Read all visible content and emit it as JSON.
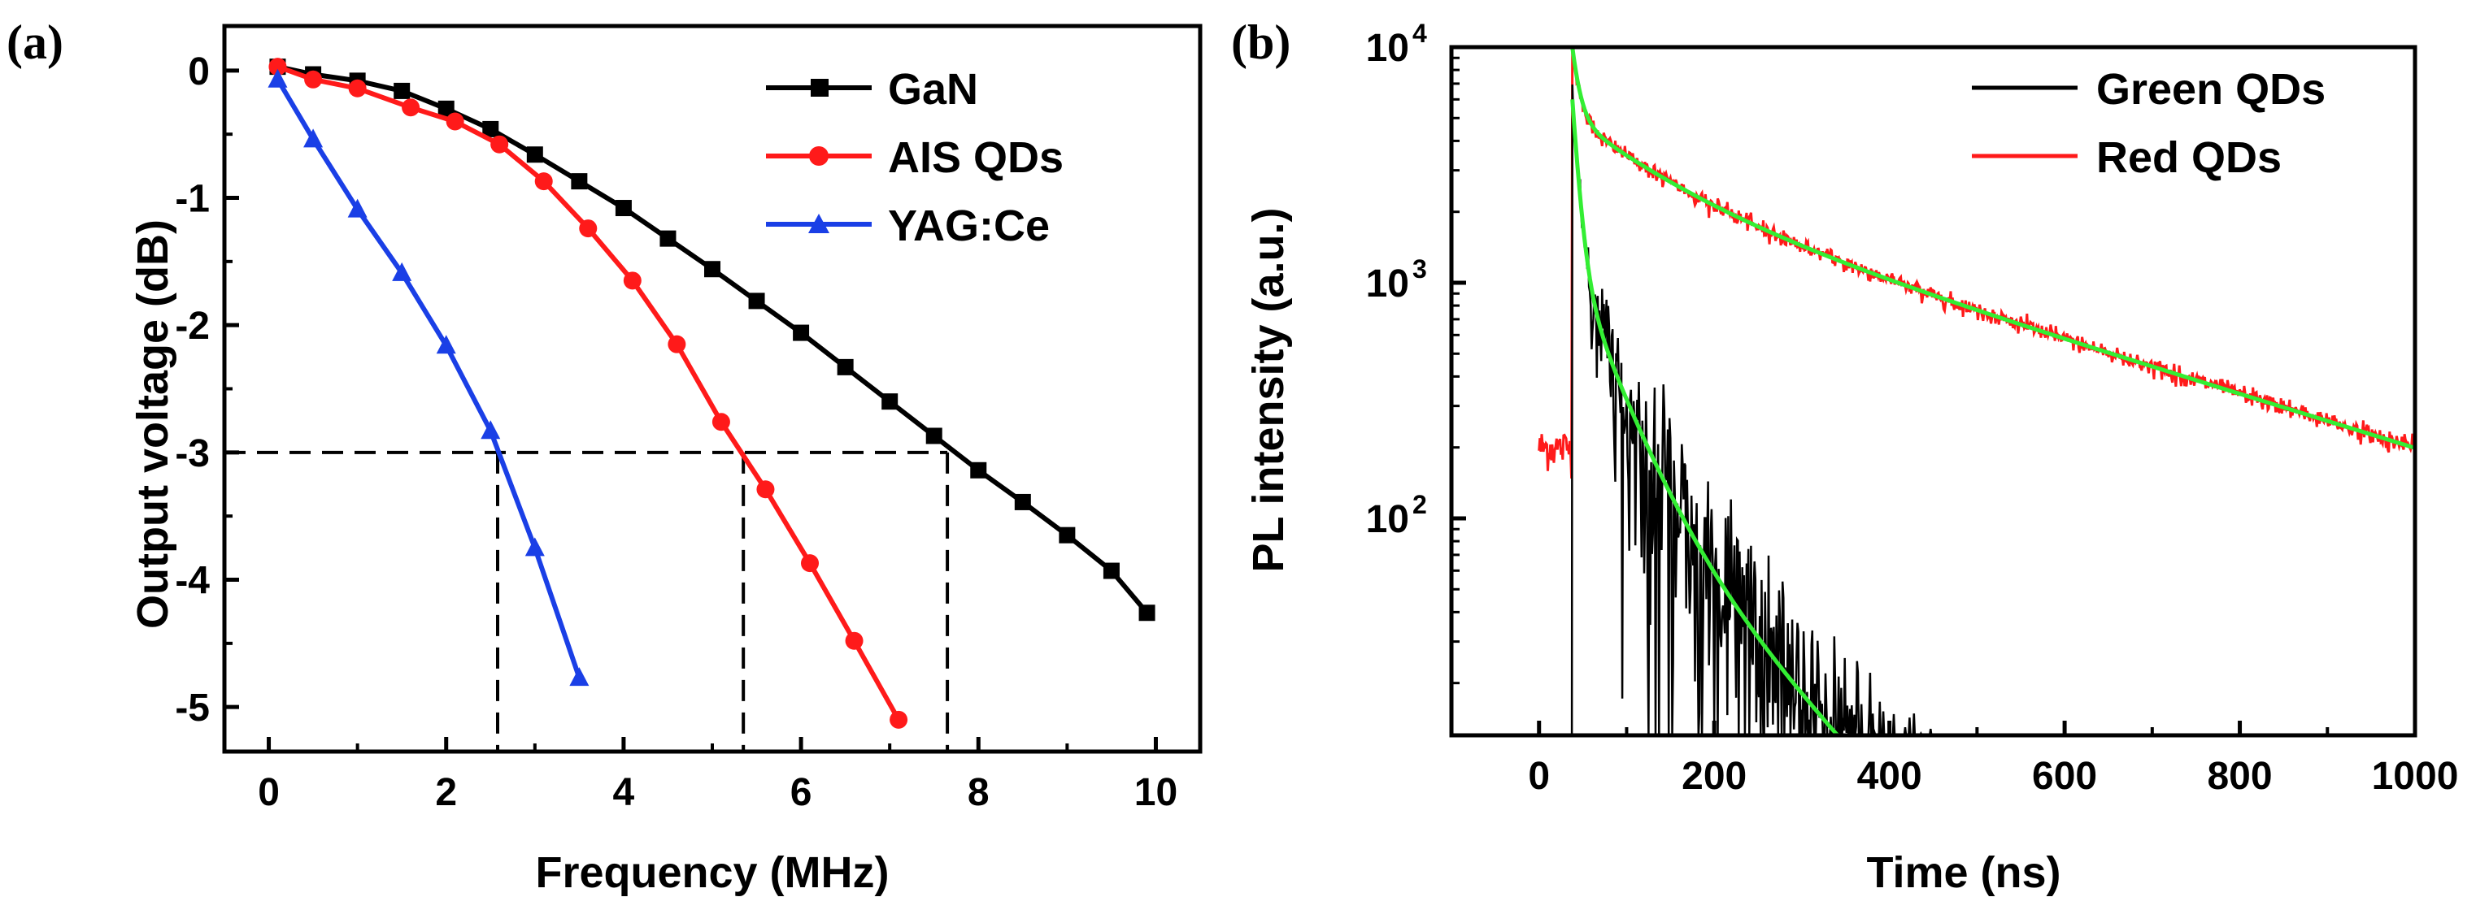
{
  "colors": {
    "gan": "#000000",
    "ais": "#ff1a1a",
    "yag": "#1a3fe6",
    "green_qds": "#000000",
    "red_qds": "#ff1a1a",
    "fit": "#33ee33"
  },
  "chart_data": [
    {
      "panel": "(a)",
      "type": "line",
      "title": "",
      "xlabel": "Frequency (MHz)",
      "ylabel": "Output voltage (dB)",
      "xlim": [
        -0.5,
        10.5
      ],
      "ylim": [
        -5.35,
        0.35
      ],
      "xticks": [
        0,
        2,
        4,
        6,
        8,
        10
      ],
      "xtick_labels": [
        "0",
        "2",
        "4",
        "6",
        "8",
        "10"
      ],
      "yticks": [
        0,
        -1,
        -2,
        -3,
        -4,
        -5
      ],
      "ytick_labels": [
        "0",
        "-1",
        "-2",
        "-3",
        "-4",
        "-5"
      ],
      "legend_position": "top-right",
      "series": [
        {
          "name": "GaN",
          "color": "#000000",
          "marker": "square",
          "x": [
            0.1,
            0.5,
            1.0,
            1.5,
            2.0,
            2.5,
            3.0,
            3.5,
            4.0,
            4.5,
            5.0,
            5.5,
            6.0,
            6.5,
            7.0,
            7.5,
            8.0,
            8.5,
            9.0,
            9.5,
            9.9
          ],
          "values": [
            0.03,
            -0.03,
            -0.08,
            -0.16,
            -0.3,
            -0.46,
            -0.66,
            -0.87,
            -1.08,
            -1.32,
            -1.56,
            -1.81,
            -2.06,
            -2.33,
            -2.6,
            -2.87,
            -3.14,
            -3.39,
            -3.65,
            -3.93,
            -4.26
          ]
        },
        {
          "name": "AIS QDs",
          "color": "#ff1a1a",
          "marker": "circle",
          "x": [
            0.1,
            0.5,
            1.0,
            1.6,
            2.1,
            2.6,
            3.1,
            3.6,
            4.1,
            4.6,
            5.1,
            5.6,
            6.1,
            6.6,
            7.1
          ],
          "values": [
            0.03,
            -0.07,
            -0.14,
            -0.29,
            -0.4,
            -0.58,
            -0.87,
            -1.24,
            -1.65,
            -2.15,
            -2.76,
            -3.29,
            -3.87,
            -4.48,
            -5.1
          ]
        },
        {
          "name": "YAG:Ce",
          "color": "#1a3fe6",
          "marker": "triangle",
          "x": [
            0.1,
            0.5,
            1.0,
            1.5,
            2.0,
            2.5,
            3.0,
            3.5
          ],
          "values": [
            -0.07,
            -0.54,
            -1.09,
            -1.59,
            -2.16,
            -2.83,
            -3.75,
            -4.77
          ]
        }
      ],
      "cutoff_line_y": -3,
      "cutoff_frequencies": [
        2.58,
        5.35,
        7.65
      ]
    },
    {
      "panel": "(b)",
      "type": "line",
      "title": "",
      "xlabel": "Time (ns)",
      "ylabel": "PL intensity (a.u.)",
      "yscale": "log",
      "xlim": [
        -100,
        1000
      ],
      "ylim": [
        12,
        10000
      ],
      "xticks": [
        0,
        200,
        400,
        600,
        800,
        1000
      ],
      "xtick_labels": [
        "0",
        "200",
        "400",
        "600",
        "800",
        "1000"
      ],
      "yticks": [
        100,
        1000,
        10000
      ],
      "ytick_base": "10",
      "ytick_exponents": [
        "2",
        "3",
        "4"
      ],
      "legend_position": "top-right",
      "series": [
        {
          "name": "Green QDs",
          "color": "#000000",
          "t0": 38,
          "peak": 6000,
          "components": [
            [
              0.8,
              7
            ],
            [
              0.17,
              40
            ],
            [
              0.03,
              110
            ]
          ]
        },
        {
          "name": "Red QDs",
          "color": "#ff1a1a",
          "baseline": 200,
          "t0": 38,
          "peak": 10000,
          "components": [
            [
              0.5,
              8
            ],
            [
              0.25,
              100
            ],
            [
              0.25,
              380
            ]
          ]
        }
      ]
    }
  ]
}
